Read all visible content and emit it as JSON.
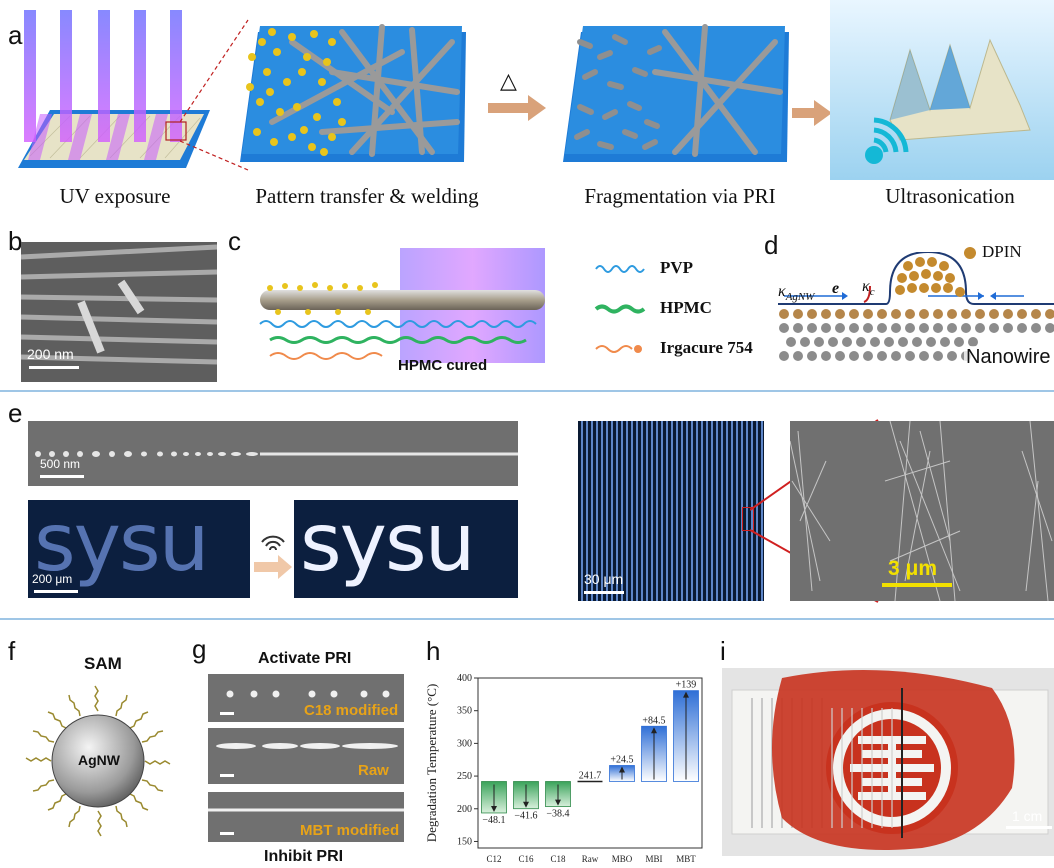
{
  "panels": [
    "a",
    "b",
    "c",
    "d",
    "e",
    "f",
    "g",
    "h",
    "i"
  ],
  "panel_a": {
    "captions": [
      "UV exposure",
      "Pattern transfer & welding",
      "Fragmentation via PRI",
      "Ultrasonication"
    ],
    "delta": "△"
  },
  "panel_b": {
    "scale": "200 nm"
  },
  "panel_c": {
    "legend": [
      "PVP",
      "HPMC",
      "Irgacure 754"
    ],
    "cured_label": "HPMC cured"
  },
  "panel_d": {
    "legend": "DPIN",
    "kappa_agnw": "κ",
    "kappa_agnw_sub": "AgNW",
    "e_label": "e",
    "kappa_c": "κ",
    "kappa_c_sub": "c",
    "nanowire": "Nanowire"
  },
  "panel_e": {
    "scale_top": "500 nm",
    "scale_sysu": "200 μm",
    "word": "sysu",
    "scale_grid": "30 μm",
    "scale_zoom": "3 μm"
  },
  "panel_f": {
    "title": "SAM",
    "core": "AgNW"
  },
  "panel_g": {
    "title_top": "Activate PRI",
    "title_bottom": "Inhibit PRI",
    "tags": [
      "C18 modified",
      "Raw",
      "MBT modified"
    ]
  },
  "panel_i": {
    "scale": "1 cm"
  },
  "colors": {
    "separator": "#9fc6e6",
    "green_bar": "#3aa35a",
    "blue_bar": "#2f6fd6",
    "gold": "#e8a317",
    "red_seal": "#c8321e"
  },
  "chart_data": {
    "type": "bar",
    "title": "",
    "xlabel": "",
    "ylabel": "Degradation Temperature (°C)",
    "ylim": [
      140,
      400
    ],
    "yticks": [
      150,
      200,
      250,
      300,
      350,
      400
    ],
    "categories": [
      "C12",
      "C16",
      "C18",
      "Raw",
      "MBO",
      "MBI",
      "MBT"
    ],
    "baseline": 241.7,
    "baseline_label": "241.7",
    "values": [
      193.6,
      200.1,
      203.3,
      241.7,
      266.2,
      326.2,
      380.7
    ],
    "delta_labels": [
      "−48.1",
      "−41.6",
      "−38.4",
      "",
      "+24.5",
      "+84.5",
      "+139"
    ]
  }
}
